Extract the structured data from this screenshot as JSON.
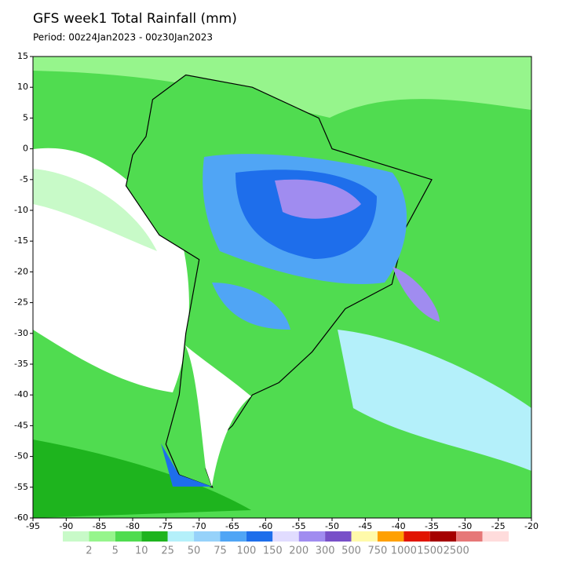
{
  "title": "GFS week1 Total Rainfall (mm)",
  "subtitle": "Period: 00z24Jan2023 - 00z30Jan2023",
  "map": {
    "xlim": [
      -95,
      -20
    ],
    "ylim": [
      -60,
      15
    ],
    "xticks": [
      -95,
      -90,
      -85,
      -80,
      -75,
      -70,
      -65,
      -60,
      -55,
      -50,
      -45,
      -40,
      -35,
      -30,
      -25,
      -20
    ],
    "yticks": [
      15,
      10,
      5,
      0,
      -5,
      -10,
      -15,
      -20,
      -25,
      -30,
      -35,
      -40,
      -45,
      -50,
      -55,
      -60
    ]
  },
  "colorbar": {
    "levels": [
      2,
      5,
      10,
      25,
      50,
      75,
      100,
      150,
      200,
      300,
      500,
      750,
      1000,
      1500,
      2500
    ],
    "colors": [
      "#c8fac8",
      "#96f58c",
      "#50dc50",
      "#1eb41e",
      "#b4f0fa",
      "#96d2fa",
      "#50a5f5",
      "#1e6eeb",
      "#e1dcff",
      "#a08cf0",
      "#7850c8",
      "#fffaaa",
      "#ffa000",
      "#e11400",
      "#a50000",
      "#e67878",
      "#ffdcdc"
    ]
  }
}
